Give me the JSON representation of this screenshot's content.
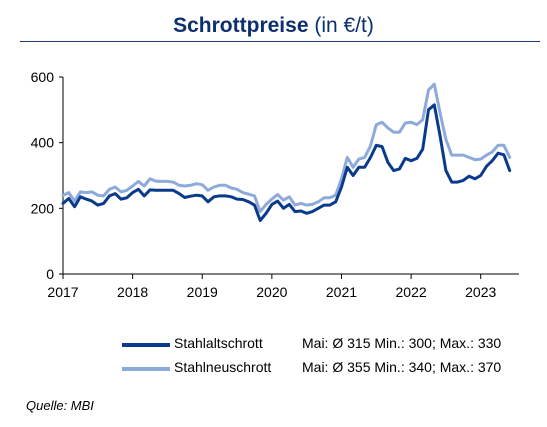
{
  "title_main": "Schrottpreise",
  "title_unit": "(in €/t)",
  "source": "Quelle: MBI",
  "chart_data": {
    "type": "line",
    "title": "Schrottpreise (in €/t)",
    "xlabel": "",
    "ylabel": "",
    "x_ticks": [
      "2017",
      "2018",
      "2019",
      "2020",
      "2021",
      "2022",
      "2023"
    ],
    "y_ticks": [
      0,
      200,
      400,
      600
    ],
    "xlim": [
      2017.0,
      2023.55
    ],
    "ylim": [
      0,
      600
    ],
    "grid": false,
    "legend_position": "bottom",
    "x": [
      2017.0,
      2017.083,
      2017.167,
      2017.25,
      2017.333,
      2017.417,
      2017.5,
      2017.583,
      2017.667,
      2017.75,
      2017.833,
      2017.917,
      2018.0,
      2018.083,
      2018.167,
      2018.25,
      2018.333,
      2018.417,
      2018.5,
      2018.583,
      2018.667,
      2018.75,
      2018.833,
      2018.917,
      2019.0,
      2019.083,
      2019.167,
      2019.25,
      2019.333,
      2019.417,
      2019.5,
      2019.583,
      2019.667,
      2019.75,
      2019.833,
      2019.917,
      2020.0,
      2020.083,
      2020.167,
      2020.25,
      2020.333,
      2020.417,
      2020.5,
      2020.583,
      2020.667,
      2020.75,
      2020.833,
      2020.917,
      2021.0,
      2021.083,
      2021.167,
      2021.25,
      2021.333,
      2021.417,
      2021.5,
      2021.583,
      2021.667,
      2021.75,
      2021.833,
      2021.917,
      2022.0,
      2022.083,
      2022.167,
      2022.25,
      2022.333,
      2022.417,
      2022.5,
      2022.583,
      2022.667,
      2022.75,
      2022.833,
      2022.917,
      2023.0,
      2023.083,
      2023.167,
      2023.25,
      2023.333,
      2023.417
    ],
    "series": [
      {
        "name": "Stahlaltschrott",
        "color": "#0a3a8c",
        "legend_stats": "Mai: Ø 315  Min.: 300; Max.: 330",
        "values": [
          215,
          230,
          205,
          235,
          228,
          222,
          210,
          215,
          238,
          245,
          228,
          232,
          248,
          258,
          238,
          256,
          255,
          255,
          255,
          255,
          245,
          233,
          237,
          240,
          238,
          220,
          235,
          238,
          238,
          235,
          228,
          227,
          220,
          210,
          163,
          185,
          212,
          222,
          200,
          212,
          190,
          192,
          185,
          190,
          200,
          210,
          210,
          220,
          265,
          325,
          300,
          325,
          325,
          355,
          392,
          388,
          340,
          315,
          320,
          352,
          345,
          352,
          380,
          500,
          515,
          420,
          315,
          280,
          280,
          285,
          298,
          290,
          300,
          328,
          345,
          368,
          363,
          315
        ]
      },
      {
        "name": "Stahlneuschrott",
        "color": "#8eaadb",
        "legend_stats": "Mai: Ø 355  Min.: 340; Max.: 370",
        "values": [
          240,
          248,
          222,
          250,
          248,
          250,
          240,
          238,
          258,
          265,
          250,
          255,
          268,
          282,
          268,
          290,
          283,
          282,
          282,
          280,
          270,
          268,
          270,
          275,
          272,
          255,
          265,
          270,
          270,
          262,
          258,
          248,
          243,
          238,
          190,
          212,
          228,
          242,
          225,
          235,
          210,
          215,
          210,
          212,
          220,
          232,
          232,
          240,
          290,
          355,
          325,
          350,
          355,
          390,
          455,
          462,
          445,
          432,
          432,
          460,
          462,
          455,
          470,
          560,
          578,
          490,
          410,
          362,
          362,
          362,
          355,
          348,
          350,
          362,
          372,
          392,
          392,
          355
        ]
      }
    ]
  }
}
